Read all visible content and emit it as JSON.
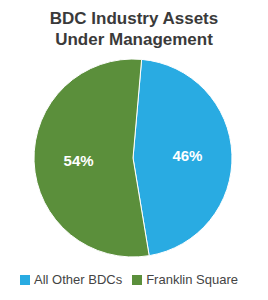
{
  "chart_data": {
    "type": "pie",
    "title": "BDC Industry Assets Under Management",
    "categories": [
      "All Other BDCs",
      "Franklin Square"
    ],
    "values": [
      46,
      54
    ],
    "value_labels": [
      "46%",
      "54%"
    ],
    "colors": [
      "#29abe2",
      "#5b8f3b"
    ],
    "data_labels": true,
    "legend": "bottom"
  }
}
